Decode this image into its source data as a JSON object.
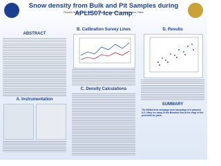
{
  "header": {
    "title": "Snow density from Bulk and Pit Samples during APLIS07 Ice Camp",
    "authors": "Robert Hosny, Cathleen A. Geiger, Adrian Turner, Katharine Giles"
  },
  "sections": [
    {
      "title": "ABSTRACT"
    },
    {
      "title": "A. Instrumentation"
    },
    {
      "title": "B. Calibration Survey Lines"
    },
    {
      "title": "C. Density Calculations"
    },
    {
      "title": "D. Results"
    },
    {
      "title": "SUMMARY",
      "text": "The MSNA field campaign took advantage of a planned U.S. Navy ice camp in the Beaufort Sea at the edge of the perennial ice pack."
    }
  ]
}
